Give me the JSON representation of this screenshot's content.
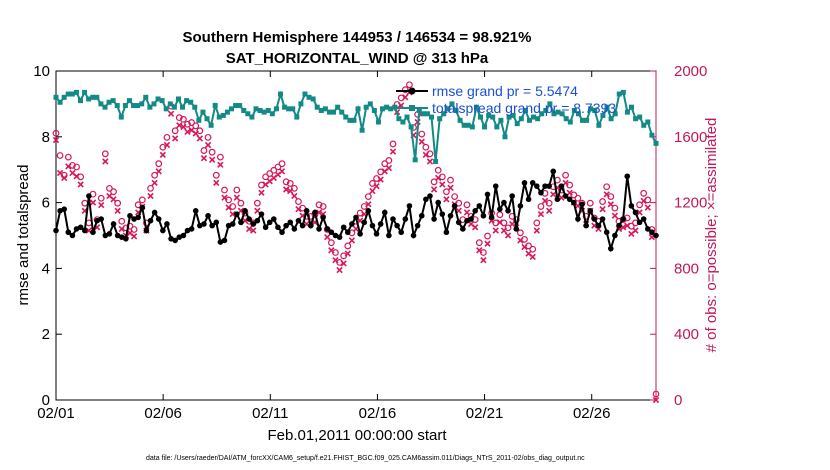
{
  "chart_data": {
    "type": "line",
    "title": "Southern Hemisphere 144953 / 146534 = 98.921%",
    "subtitle": "SAT_HORIZONTAL_WIND @ 313 hPa",
    "xlabel": "Feb.01,2011 00:00:00 start",
    "ylabel_left": "rmse and totalspread",
    "ylabel_right": "# of obs: o=possible; ×=assimilated",
    "footnote": "data file: /Users/raeder/DAI/ATM_forcXX/CAM6_setup/f.e21.FHIST_BGC.f09_025.CAM6assim.011/Diags_NTrS_2011-02/obs_diag_output.nc",
    "x_ticks": [
      "02/01",
      "02/06",
      "02/11",
      "02/16",
      "02/21",
      "02/26"
    ],
    "x_tick_days": [
      0,
      5,
      10,
      15,
      20,
      25
    ],
    "xlim": [
      0,
      28
    ],
    "ylim_left": [
      0,
      10
    ],
    "yticks_left": [
      "0",
      "2",
      "4",
      "6",
      "8",
      "10"
    ],
    "ylim_right": [
      0,
      2000
    ],
    "yticks_right": [
      "0",
      "400",
      "800",
      "1200",
      "1600",
      "2000"
    ],
    "legend": [
      {
        "label": "rmse grand pr = 5.5474",
        "color": "#000000"
      },
      {
        "label": "totalspread grand pr = 8.7393",
        "color": "#138a86"
      }
    ],
    "colors": {
      "rmse": "#000000",
      "spread": "#138a86",
      "obs": "#d8175a",
      "right_axis": "#c2185b"
    },
    "series": [
      {
        "name": "rmse grand pr = 5.5474",
        "axis": "left",
        "values": [
          5.15,
          5.75,
          5.8,
          5.1,
          5.0,
          5.2,
          5.25,
          5.15,
          6.2,
          5.1,
          5.45,
          5.5,
          5.0,
          5.05,
          5.35,
          5.0,
          4.95,
          4.9,
          5.6,
          5.5,
          5.55,
          5.85,
          5.15,
          5.45,
          5.7,
          5.5,
          5.15,
          5.35,
          4.9,
          4.85,
          4.95,
          5.0,
          5.15,
          5.2,
          5.75,
          5.3,
          5.35,
          5.6,
          5.3,
          5.4,
          4.8,
          4.85,
          5.3,
          5.35,
          5.65,
          5.4,
          5.75,
          5.5,
          5.35,
          5.45,
          5.65,
          5.25,
          5.4,
          5.5,
          5.25,
          5.1,
          5.3,
          5.4,
          5.2,
          5.45,
          5.3,
          5.75,
          5.3,
          5.7,
          5.2,
          5.55,
          5.2,
          5.1,
          5.0,
          4.95,
          5.25,
          5.1,
          5.35,
          5.55,
          5.05,
          5.4,
          5.75,
          5.3,
          5.05,
          5.35,
          5.7,
          5.0,
          5.5,
          5.3,
          5.1,
          5.5,
          5.9,
          5.0,
          5.3,
          5.6,
          6.1,
          6.2,
          5.5,
          6.0,
          5.65,
          5.1,
          5.6,
          5.9,
          5.4,
          5.2,
          5.45,
          5.5,
          5.75,
          5.9,
          5.6,
          6.25,
          5.55,
          6.5,
          5.8,
          6.0,
          5.75,
          6.2,
          5.2,
          5.9,
          6.6,
          6.1,
          6.6,
          6.5,
          6.3,
          6.5,
          6.5,
          6.95,
          6.1,
          6.5,
          6.2,
          6.1,
          6.0,
          5.5,
          5.95,
          5.3,
          5.75,
          5.5,
          5.3,
          5.5,
          5.1,
          4.6,
          5.0,
          5.3,
          5.5,
          6.8,
          5.9,
          5.7,
          5.4,
          5.5,
          5.2,
          5.1,
          5.0
        ]
      },
      {
        "name": "totalspread grand pr = 8.7393",
        "axis": "left",
        "values": [
          9.2,
          9.05,
          9.2,
          9.3,
          9.3,
          9.35,
          9.1,
          9.35,
          9.15,
          9.2,
          9.2,
          9.0,
          8.9,
          9.05,
          9.1,
          8.95,
          8.6,
          8.95,
          9.1,
          8.95,
          8.95,
          9.0,
          9.2,
          8.9,
          9.0,
          9.15,
          9.1,
          8.85,
          9.0,
          8.9,
          9.15,
          8.9,
          9.1,
          9.05,
          8.9,
          8.5,
          8.75,
          8.55,
          8.35,
          8.95,
          8.6,
          8.65,
          8.75,
          8.85,
          8.95,
          8.95,
          8.8,
          8.7,
          8.6,
          8.85,
          8.8,
          8.75,
          8.8,
          8.7,
          8.85,
          9.3,
          8.9,
          8.85,
          8.85,
          8.6,
          9.0,
          9.3,
          9.2,
          9.15,
          8.9,
          8.8,
          8.85,
          8.75,
          8.75,
          8.9,
          8.75,
          8.6,
          8.5,
          8.5,
          8.85,
          8.2,
          8.9,
          9.0,
          8.8,
          8.45,
          8.85,
          8.9,
          8.85,
          8.9,
          8.55,
          8.45,
          8.6,
          8.3,
          7.3,
          8.8,
          8.7,
          8.7,
          8.6,
          7.25,
          8.55,
          8.7,
          8.85,
          9.0,
          8.8,
          8.5,
          8.35,
          8.35,
          8.3,
          8.9,
          8.6,
          8.3,
          8.65,
          8.6,
          8.3,
          8.5,
          8.0,
          8.6,
          8.65,
          8.4,
          8.55,
          8.8,
          8.5,
          8.6,
          8.55,
          8.7,
          8.8,
          9.0,
          8.7,
          8.75,
          8.7,
          8.55,
          8.45,
          8.8,
          8.7,
          8.5,
          8.5,
          8.85,
          8.8,
          8.35,
          8.65,
          8.9,
          8.55,
          8.7,
          9.3,
          9.35,
          8.75,
          8.9,
          8.55,
          8.6,
          8.35,
          8.45,
          8.05,
          7.8
        ]
      },
      {
        "name": "",
        "axis": "right",
        "marker": "o",
        "values": [
          1585,
          1450,
          1330,
          1440,
          1390,
          1380,
          1320,
          1160,
          1040,
          1215,
          1060,
          1190,
          1460,
          1250,
          1230,
          1160,
          1050,
          1010,
          1020,
          1000,
          1150,
          1180,
          1040,
          1250,
          1330,
          1400,
          1500,
          1560,
          1750,
          1600,
          1680,
          1670,
          1640,
          1650,
          1630,
          1600,
          1480,
          1560,
          1470,
          1330,
          1440,
          1240,
          1180,
          1140,
          1240,
          1160,
          1100,
          1050,
          1040,
          1160,
          1270,
          1320,
          1340,
          1360,
          1380,
          1400,
          1290,
          1280,
          1250,
          1170,
          1130,
          1080,
          1080,
          1090,
          1150,
          1140,
          1000,
          920,
          860,
          800,
          840,
          900,
          980,
          1050,
          1100,
          1140,
          1200,
          1280,
          1310,
          1350,
          1400,
          1420,
          1520,
          1760,
          1800,
          1850,
          1880,
          1620,
          1700,
          1580,
          1500,
          1460,
          1290,
          1360,
          1320,
          1230,
          1300,
          1200,
          1160,
          1060,
          1150,
          1080,
          1060,
          920,
          860,
          960,
          1100,
          1040,
          1090,
          1040,
          1010,
          1080,
          1060,
          980,
          940,
          900,
          880,
          1040,
          1140,
          1220,
          1160,
          1260,
          1300,
          1240,
          1330,
          1270,
          1210,
          1190,
          1160,
          1080,
          1160,
          1070,
          1050,
          1170,
          1260,
          1200,
          1130,
          1050,
          1060,
          1070,
          1020,
          1040,
          1150,
          1220,
          1180,
          1000,
          0
        ]
      },
      {
        "name": "",
        "axis": "right",
        "marker": "x",
        "values": [
          1580,
          1380,
          1350,
          1420,
          1380,
          1360,
          1310,
          1150,
          1030,
          1200,
          1050,
          1185,
          1450,
          1240,
          1220,
          1150,
          1040,
          1000,
          1015,
          995,
          1140,
          1175,
          1030,
          1240,
          1320,
          1390,
          1490,
          1550,
          1740,
          1590,
          1670,
          1660,
          1630,
          1640,
          1620,
          1590,
          1470,
          1550,
          1460,
          1320,
          1430,
          1230,
          1170,
          1130,
          1230,
          1150,
          1090,
          1040,
          1030,
          1150,
          1260,
          1310,
          1330,
          1350,
          1370,
          1390,
          1280,
          1270,
          1240,
          1160,
          1120,
          1070,
          1070,
          1080,
          1140,
          1130,
          990,
          910,
          850,
          790,
          830,
          890,
          970,
          1040,
          1090,
          1130,
          1190,
          1270,
          1300,
          1340,
          1390,
          1410,
          1510,
          1750,
          1790,
          1840,
          1870,
          1610,
          1690,
          1570,
          1490,
          1450,
          1280,
          1350,
          1310,
          1220,
          1290,
          1190,
          1150,
          1050,
          1140,
          1070,
          1050,
          910,
          850,
          950,
          1090,
          1030,
          1080,
          1030,
          1000,
          1070,
          1050,
          970,
          930,
          890,
          870,
          1030,
          1130,
          1210,
          1150,
          1250,
          1290,
          1230,
          1320,
          1260,
          1200,
          1180,
          1150,
          1070,
          1150,
          1060,
          1040,
          1160,
          1250,
          1190,
          1120,
          1040,
          1050,
          1060,
          1010,
          1030,
          1140,
          1210,
          1170,
          990,
          0
        ]
      }
    ]
  }
}
